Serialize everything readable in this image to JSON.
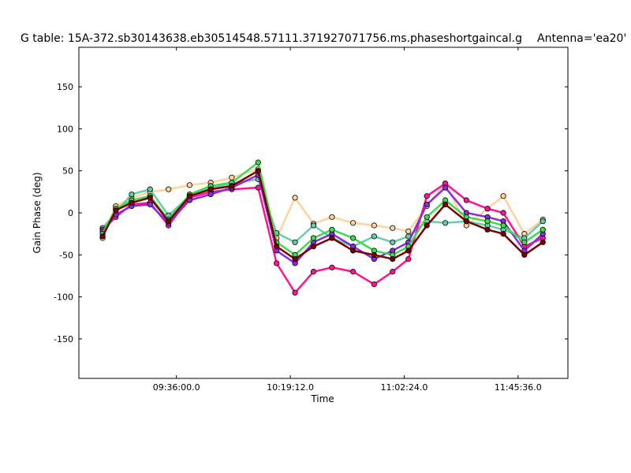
{
  "chart_data": {
    "type": "line",
    "title": "G table: 15A-372.sb30143638.eb30514548.57111.371927071756.ms.phaseshortgaincal.g",
    "annotation": "Antenna='ea20'",
    "xlabel": "Time",
    "ylabel": "Gain Phase (deg)",
    "xlim": [
      "08:59:00",
      "12:04:30"
    ],
    "ylim": [
      -197,
      197
    ],
    "x_ticks": [
      "09:36:00.0",
      "10:19:12.0",
      "11:02:24.0",
      "11:45:36.0"
    ],
    "y_ticks": [
      -150,
      -100,
      -50,
      0,
      50,
      100,
      150
    ],
    "grid": false,
    "legend": "none",
    "colors": {
      "line_palette": [
        "#3f9fd0",
        "#3ddc4a",
        "#d9a441",
        "#8a2be2",
        "#e7d84a",
        "#7a0000",
        "#ff1493",
        "#c0c0c0",
        "#4682b4",
        "#2f8f2f",
        "#cd853f",
        "#aa00aa",
        "#66cdaa",
        "#ffa07a",
        "#0b0b8a",
        "#ffd39b"
      ]
    },
    "series": [
      {
        "color": "#ffd39b",
        "x": [
          "09:08",
          "09:13",
          "09:19",
          "09:26",
          "09:33",
          "09:41",
          "09:49",
          "09:57",
          "10:07",
          "10:14",
          "10:21",
          "10:28",
          "10:35",
          "10:43",
          "10:51",
          "10:58",
          "11:04",
          "11:11",
          "11:18",
          "11:26",
          "11:34",
          "11:40",
          "11:48",
          "11:55"
        ],
        "y": [
          -30,
          8,
          18,
          25,
          28,
          33,
          36,
          42,
          52,
          -30,
          18,
          -13,
          -5,
          -12,
          -15,
          -18,
          -22,
          8,
          35,
          -15,
          5,
          20,
          -25,
          -8
        ]
      },
      {
        "color": "#66cdaa",
        "x": [
          "09:08",
          "09:13",
          "09:19",
          "09:26",
          "09:33",
          "09:41",
          "09:49",
          "09:57",
          "10:07",
          "10:14",
          "10:21",
          "10:28",
          "10:35",
          "10:43",
          "10:51",
          "10:58",
          "11:04",
          "11:11",
          "11:18",
          "11:26",
          "11:34",
          "11:40",
          "11:48",
          "11:55"
        ],
        "y": [
          -18,
          0,
          22,
          28,
          -3,
          20,
          30,
          35,
          40,
          -24,
          -35,
          -15,
          -30,
          -40,
          -28,
          -35,
          -28,
          -10,
          -12,
          -10,
          -15,
          -20,
          -30,
          -10
        ]
      },
      {
        "color": "#ff1493",
        "x": [
          "09:08",
          "09:13",
          "09:19",
          "09:26",
          "09:33",
          "09:41",
          "09:49",
          "09:57",
          "10:07",
          "10:14",
          "10:21",
          "10:28",
          "10:35",
          "10:43",
          "10:51",
          "10:58",
          "11:04",
          "11:11",
          "11:18",
          "11:26",
          "11:34",
          "11:40",
          "11:48",
          "11:55"
        ],
        "y": [
          -20,
          -5,
          10,
          12,
          -15,
          18,
          25,
          28,
          30,
          -60,
          -95,
          -70,
          -65,
          -70,
          -85,
          -70,
          -55,
          20,
          35,
          15,
          5,
          0,
          -40,
          -30
        ]
      },
      {
        "color": "#8a2be2",
        "x": [
          "09:08",
          "09:13",
          "09:19",
          "09:26",
          "09:33",
          "09:41",
          "09:49",
          "09:57",
          "10:07",
          "10:14",
          "10:21",
          "10:28",
          "10:35",
          "10:43",
          "10:51",
          "10:58",
          "11:04",
          "11:11",
          "11:18",
          "11:26",
          "11:34",
          "11:40",
          "11:48",
          "11:55"
        ],
        "y": [
          -22,
          -2,
          8,
          10,
          -12,
          15,
          22,
          30,
          45,
          -45,
          -60,
          -35,
          -25,
          -40,
          -55,
          -45,
          -35,
          10,
          30,
          0,
          -5,
          -10,
          -45,
          -25
        ]
      },
      {
        "color": "#3ddc4a",
        "x": [
          "09:08",
          "09:13",
          "09:19",
          "09:26",
          "09:33",
          "09:41",
          "09:49",
          "09:57",
          "10:07",
          "10:14",
          "10:21",
          "10:28",
          "10:35",
          "10:43",
          "10:51",
          "10:58",
          "11:04",
          "11:11",
          "11:18",
          "11:26",
          "11:34",
          "11:40",
          "11:48",
          "11:55"
        ],
        "y": [
          -25,
          5,
          15,
          20,
          -8,
          22,
          32,
          36,
          60,
          -35,
          -50,
          -30,
          -20,
          -30,
          -45,
          -50,
          -40,
          -5,
          15,
          -5,
          -10,
          -15,
          -35,
          -20
        ]
      },
      {
        "color": "#7a0000",
        "x": [
          "09:08",
          "09:13",
          "09:19",
          "09:26",
          "09:33",
          "09:41",
          "09:49",
          "09:57",
          "10:07",
          "10:14",
          "10:21",
          "10:28",
          "10:35",
          "10:43",
          "10:51",
          "10:58",
          "11:04",
          "11:11",
          "11:18",
          "11:26",
          "11:34",
          "11:40",
          "11:48",
          "11:55"
        ],
        "y": [
          -28,
          3,
          12,
          18,
          -10,
          20,
          28,
          32,
          50,
          -40,
          -55,
          -40,
          -30,
          -45,
          -50,
          -55,
          -45,
          -15,
          10,
          -10,
          -20,
          -25,
          -50,
          -35
        ]
      }
    ]
  }
}
